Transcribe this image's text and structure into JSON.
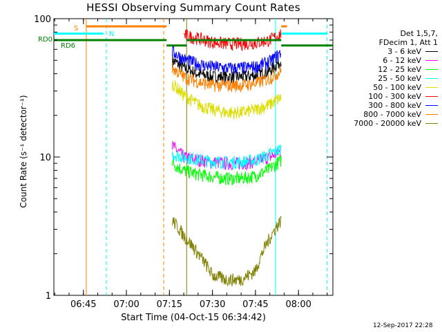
{
  "chart_data": {
    "type": "line",
    "title": "HESSI Observing Summary Count Rates",
    "xlabel": "Start Time (04-Oct-15 06:34:42)",
    "ylabel": "Count Rate (s⁻¹ detector⁻¹)",
    "yscale": "log",
    "ylim": [
      1,
      100
    ],
    "y_ticks": [
      "1",
      "10",
      "100"
    ],
    "x_range": [
      "06:34:42",
      "08:12"
    ],
    "x_ticks": [
      "06:45",
      "07:00",
      "07:15",
      "07:30",
      "07:45",
      "08:00"
    ],
    "timestamp": "12-Sep-2017 22:28",
    "legend_header": [
      "Det 1,5,7,",
      "FDecim 1, Att 1"
    ],
    "series": [
      {
        "name": "3 - 6 keV",
        "color": "#000000",
        "x": [
          "07:16",
          "07:20",
          "07:25",
          "07:30",
          "07:35",
          "07:40",
          "07:45",
          "07:50",
          "07:54"
        ],
        "values": [
          50,
          44,
          40,
          38,
          38,
          38,
          39,
          42,
          50
        ]
      },
      {
        "name": "6 - 12 keV",
        "color": "#ff00ff",
        "x": [
          "07:16",
          "07:20",
          "07:25",
          "07:30",
          "07:35",
          "07:40",
          "07:45",
          "07:50",
          "07:54"
        ],
        "values": [
          12,
          10,
          9.5,
          9.2,
          9.0,
          9.0,
          9.3,
          10,
          11
        ]
      },
      {
        "name": "12 - 25 keV",
        "color": "#00ff00",
        "x": [
          "07:16",
          "07:20",
          "07:25",
          "07:30",
          "07:35",
          "07:40",
          "07:45",
          "07:50",
          "07:54"
        ],
        "values": [
          9,
          8,
          7.5,
          7.2,
          7.0,
          7.0,
          7.3,
          8.2,
          9.5
        ]
      },
      {
        "name": "25 - 50 keV",
        "color": "#00ffff",
        "x": [
          "07:16",
          "07:20",
          "07:25",
          "07:30",
          "07:35",
          "07:40",
          "07:45",
          "07:50",
          "07:54"
        ],
        "values": [
          10.5,
          10,
          9.6,
          9.3,
          9.2,
          9.2,
          9.5,
          10.5,
          11.5
        ]
      },
      {
        "name": "50 - 100 keV",
        "color": "#dddd00",
        "x": [
          "07:16",
          "07:20",
          "07:25",
          "07:30",
          "07:35",
          "07:40",
          "07:45",
          "07:50",
          "07:54"
        ],
        "values": [
          34,
          28,
          24,
          22,
          21,
          21,
          22,
          24,
          27
        ]
      },
      {
        "name": "100 - 300 keV",
        "color": "#ff0000",
        "x": [
          "07:20",
          "07:25",
          "07:30",
          "07:35",
          "07:40",
          "07:45",
          "07:50",
          "07:54"
        ],
        "values": [
          76,
          72,
          68,
          66,
          66,
          67,
          70,
          78
        ]
      },
      {
        "name": "300 - 800 keV",
        "color": "#0000ff",
        "x": [
          "07:16",
          "07:20",
          "07:25",
          "07:30",
          "07:35",
          "07:40",
          "07:45",
          "07:50",
          "07:54"
        ],
        "values": [
          58,
          51,
          47,
          45,
          44,
          44,
          45,
          49,
          57
        ]
      },
      {
        "name": "800 - 7000 keV",
        "color": "#ff8000",
        "x": [
          "07:16",
          "07:20",
          "07:25",
          "07:30",
          "07:35",
          "07:40",
          "07:45",
          "07:50",
          "07:54"
        ],
        "values": [
          44,
          38,
          35,
          33,
          33,
          33,
          34,
          37,
          42
        ]
      },
      {
        "name": "7000 - 20000 keV",
        "color": "#808000",
        "x": [
          "07:16",
          "07:20",
          "07:25",
          "07:30",
          "07:35",
          "07:40",
          "07:45",
          "07:50",
          "07:54"
        ],
        "values": [
          3.5,
          2.7,
          2.0,
          1.4,
          1.3,
          1.3,
          1.5,
          2.6,
          3.5
        ]
      }
    ],
    "flag_lines": [
      {
        "label": "S",
        "color": "#ff8000",
        "segments": [
          {
            "x": [
              "06:46",
              "07:14"
            ],
            "y": 88
          },
          {
            "x": [
              "07:54",
              "07:56"
            ],
            "y": 88
          }
        ]
      },
      {
        "label": "N",
        "color": "#00ffff",
        "segments": [
          {
            "x": [
              "06:34:42",
              "06:52"
            ],
            "y": 78
          },
          {
            "x": [
              "07:54",
              "08:10"
            ],
            "y": 78
          }
        ]
      },
      {
        "label": "RD0",
        "color": "#008000",
        "segments": [
          {
            "x": [
              "06:34:42",
              "07:14"
            ],
            "y": 70
          },
          {
            "x": [
              "07:21",
              "07:54"
            ],
            "y": 70
          }
        ]
      },
      {
        "label": "RD6",
        "color": "#008000",
        "segments": [
          {
            "x": [
              "07:14",
              "07:21"
            ],
            "y": 64
          },
          {
            "x": [
              "07:54",
              "08:12"
            ],
            "y": 64
          }
        ]
      }
    ],
    "vertical_lines": [
      {
        "x": "06:46",
        "color": "#ff8000",
        "style": "solid"
      },
      {
        "x": "06:53",
        "color": "#00ffff",
        "style": "dashed"
      },
      {
        "x": "07:13",
        "color": "#ff8000",
        "style": "dashed"
      },
      {
        "x": "07:21",
        "color": "#808000",
        "style": "solid"
      },
      {
        "x": "07:52",
        "color": "#00ffff",
        "style": "solid"
      },
      {
        "x": "08:10",
        "color": "#00ffff",
        "style": "dashed"
      }
    ]
  }
}
